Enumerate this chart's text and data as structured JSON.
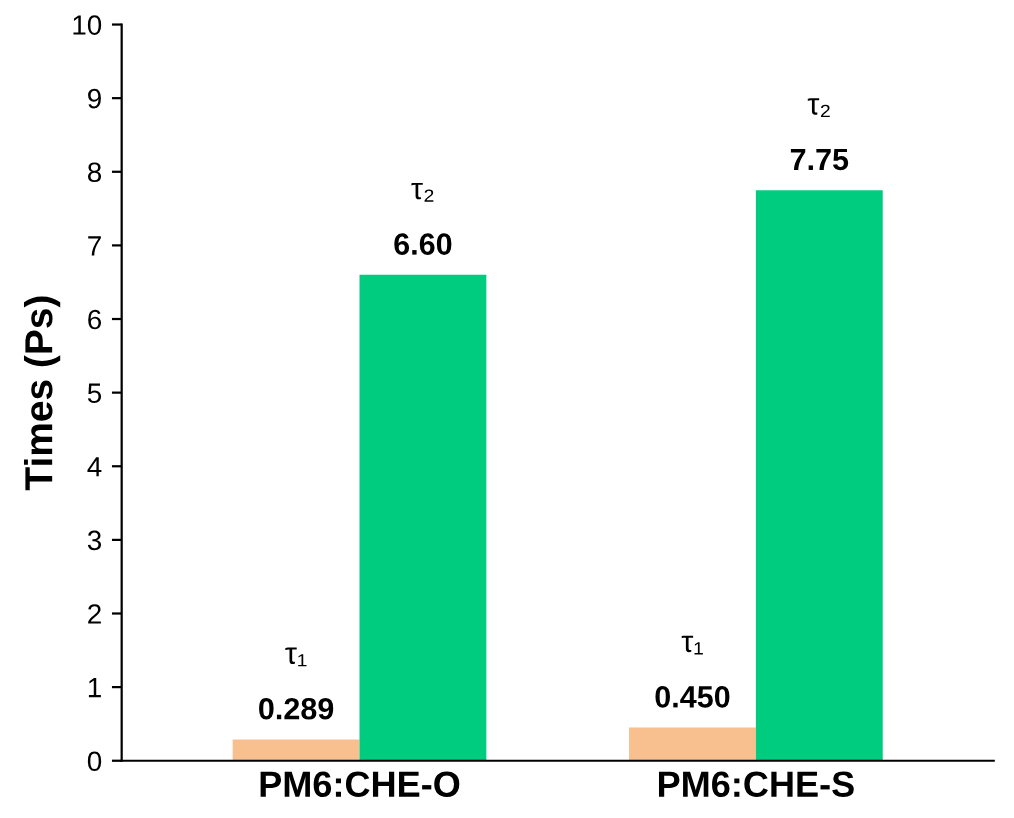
{
  "chart_data": {
    "type": "bar",
    "ylabel": "Times (Ps)",
    "categories": [
      "PM6:CHE-O",
      "PM6:CHE-S"
    ],
    "series": [
      {
        "name": "τ₁",
        "color": "#f7c08e",
        "values": [
          0.289,
          0.45
        ],
        "value_labels": [
          "0.289",
          "0.450"
        ]
      },
      {
        "name": "τ₂",
        "color": "#00cc80",
        "values": [
          6.6,
          7.75
        ],
        "value_labels": [
          "6.60",
          "7.75"
        ]
      }
    ],
    "ylim": [
      0,
      10
    ],
    "yticks": [
      0,
      1,
      2,
      3,
      4,
      5,
      6,
      7,
      8,
      9,
      10
    ],
    "grid": false,
    "legend": false
  }
}
